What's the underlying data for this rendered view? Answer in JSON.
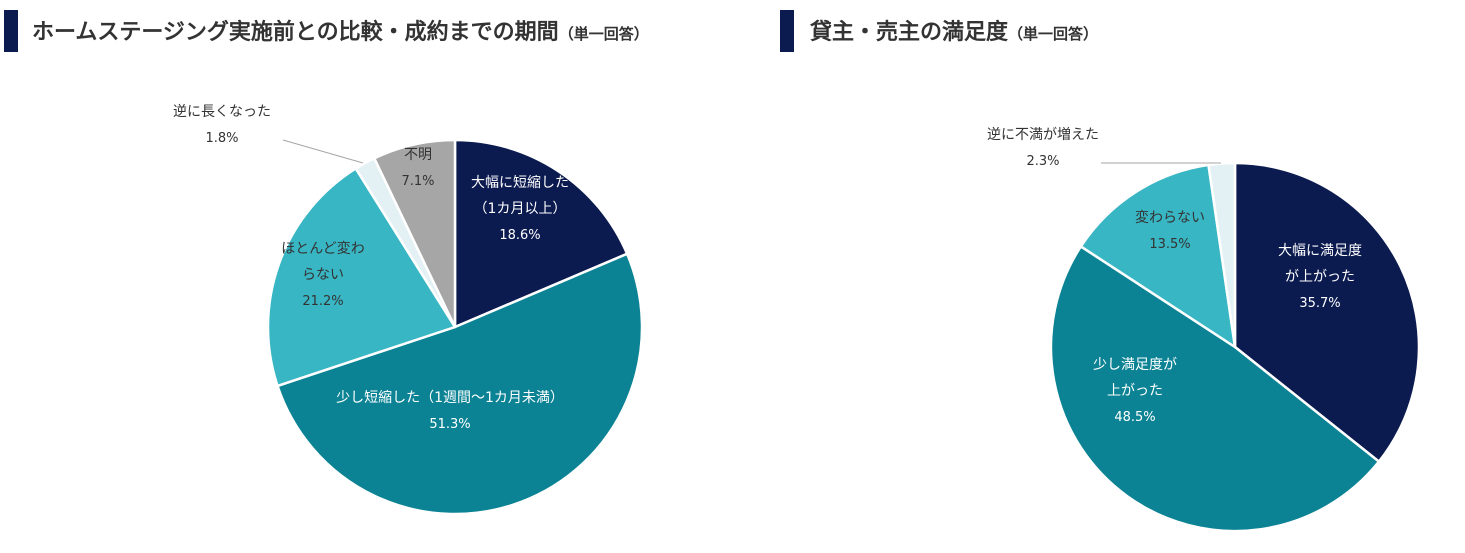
{
  "chart_data": [
    {
      "type": "pie",
      "title": "ホームステージング実施前との比較・成約までの期間",
      "title_note": "（単一回答）",
      "start_angle_deg": 0,
      "direction": "clockwise",
      "slices": [
        {
          "label_lines": [
            "大幅に短縮した",
            "（1カ月以上）"
          ],
          "value": 18.6,
          "value_label": "18.6%",
          "color": "#0b1a4f",
          "text_color": "#ffffff"
        },
        {
          "label_lines": [
            "少し短縮した（1週間〜1カ月未満）"
          ],
          "value": 51.3,
          "value_label": "51.3%",
          "color": "#0b8394",
          "text_color": "#ffffff"
        },
        {
          "label_lines": [
            "ほとんど変わ",
            "らない"
          ],
          "value": 21.2,
          "value_label": "21.2%",
          "color": "#38b6c4",
          "text_color": "#333333"
        },
        {
          "label_lines": [
            "逆に長くなった"
          ],
          "value": 1.8,
          "value_label": "1.8%",
          "color": "#e4f1f4",
          "text_color": "#333333",
          "outside": true
        },
        {
          "label_lines": [
            "不明"
          ],
          "value": 7.1,
          "value_label": "7.1%",
          "color": "#a6a6a6",
          "text_color": "#333333"
        }
      ]
    },
    {
      "type": "pie",
      "title": "貸主・売主の満足度",
      "title_note": "（単一回答）",
      "start_angle_deg": 0,
      "direction": "clockwise",
      "slices": [
        {
          "label_lines": [
            "大幅に満足度",
            "が上がった"
          ],
          "value": 35.7,
          "value_label": "35.7%",
          "color": "#0b1a4f",
          "text_color": "#ffffff"
        },
        {
          "label_lines": [
            "少し満足度が",
            "上がった"
          ],
          "value": 48.5,
          "value_label": "48.5%",
          "color": "#0b8394",
          "text_color": "#ffffff"
        },
        {
          "label_lines": [
            "変わらない"
          ],
          "value": 13.5,
          "value_label": "13.5%",
          "color": "#38b6c4",
          "text_color": "#333333"
        },
        {
          "label_lines": [
            "逆に不満が増えた"
          ],
          "value": 2.3,
          "value_label": "2.3%",
          "color": "#e4f1f4",
          "text_color": "#333333",
          "outside": true
        }
      ]
    }
  ]
}
